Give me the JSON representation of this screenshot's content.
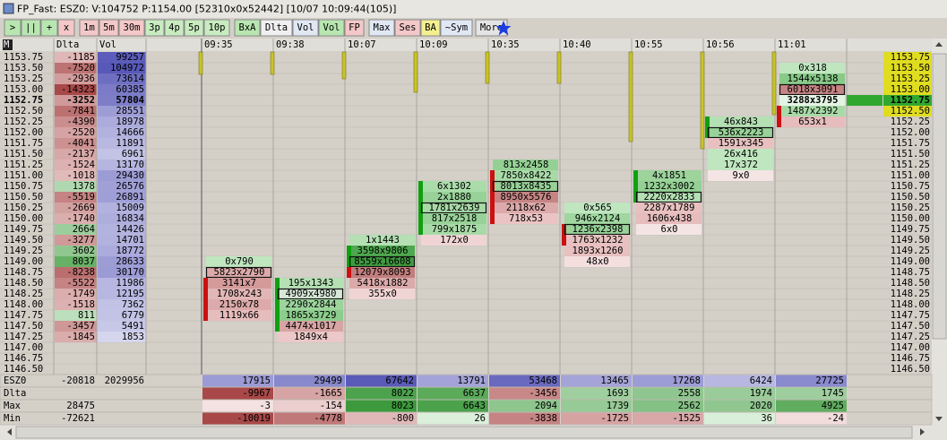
{
  "title": "FP_Fast: ESZ0: V:104752 P:1154.00 [52310x0x52442] [10/07 10:09:44(105)]",
  "toolbar": [
    {
      "label": ">",
      "color": "#b8e6b0"
    },
    {
      "label": "||",
      "color": "#b8e6b0"
    },
    {
      "label": "+",
      "color": "#b8e6b0"
    },
    {
      "label": "x",
      "color": "#f4c8c8"
    },
    {
      "label": "1m",
      "color": "#f4c8c8"
    },
    {
      "label": "5m",
      "color": "#f4c8c8"
    },
    {
      "label": "30m",
      "color": "#f4c8c8"
    },
    {
      "label": "3p",
      "color": "#c8ecc0"
    },
    {
      "label": "4p",
      "color": "#c8ecc0"
    },
    {
      "label": "5p",
      "color": "#c8ecc0"
    },
    {
      "label": "10p",
      "color": "#c8ecc0"
    },
    {
      "label": "BxA",
      "color": "#b8e6b0"
    },
    {
      "label": "Dlta",
      "color": "#f0f0f0"
    },
    {
      "label": "Vol",
      "color": "#e0e8f4"
    },
    {
      "label": "Vol",
      "color": "#b8e6b0"
    },
    {
      "label": "FP",
      "color": "#f4c8c8"
    },
    {
      "label": "Max",
      "color": "#e0e8f4"
    },
    {
      "label": "Ses",
      "color": "#f4c8c8"
    },
    {
      "label": "BA",
      "color": "#f4f090"
    },
    {
      "label": "~Sym",
      "color": "#e0e8f4"
    },
    {
      "label": "More",
      "color": "#e4e4e4"
    }
  ],
  "ladder": {
    "header": [
      "M",
      "Dlta",
      "Vol"
    ],
    "prices": [
      "1153.75",
      "1153.50",
      "1153.25",
      "1153.00",
      "1152.75",
      "1152.50",
      "1152.25",
      "1152.00",
      "1151.75",
      "1151.50",
      "1151.25",
      "1151.00",
      "1150.75",
      "1150.50",
      "1150.25",
      "1150.00",
      "1149.75",
      "1149.50",
      "1149.25",
      "1149.00",
      "1148.75",
      "1148.50",
      "1148.25",
      "1148.00",
      "1147.75",
      "1147.50",
      "1147.25",
      "1147.00",
      "1146.75",
      "1146.50"
    ],
    "dlta": [
      -1185,
      -7520,
      -2936,
      -14323,
      -3252,
      -7841,
      -4390,
      -2520,
      -4041,
      -2137,
      -1524,
      -1018,
      1378,
      -5519,
      -2669,
      -1740,
      2664,
      -3277,
      3602,
      8037,
      -8238,
      -5522,
      -1749,
      -1518,
      811,
      -3457,
      -1845,
      null,
      null,
      null
    ],
    "vol": [
      99257,
      104972,
      73614,
      60385,
      57804,
      28551,
      18978,
      14666,
      11891,
      6961,
      13170,
      29430,
      26576,
      26891,
      15009,
      16834,
      14426,
      14701,
      18772,
      28633,
      30170,
      11986,
      12195,
      7362,
      6779,
      5491,
      1853,
      null,
      null,
      null
    ]
  },
  "current_price": "1152.75",
  "columns": [
    {
      "time": "09:35",
      "activity": 25,
      "cells": [
        {
          "price": "1149.00",
          "text": "0x790",
          "color": "#bfe6bf"
        },
        {
          "price": "1148.75",
          "text": "5823x2790",
          "color": "#dcaaaa",
          "box": true
        },
        {
          "price": "1148.50",
          "text": "3141x7",
          "color": "#d49a9a",
          "bar": "#cc1010"
        },
        {
          "price": "1148.25",
          "text": "1708x243",
          "color": "#e2b6b6",
          "bar": "#cc1010"
        },
        {
          "price": "1148.00",
          "text": "2150x78",
          "color": "#dcaaaa",
          "bar": "#cc1010"
        },
        {
          "price": "1147.75",
          "text": "1119x66",
          "color": "#e6bcbc",
          "bar": "#cc1010"
        }
      ]
    },
    {
      "time": "09:38",
      "activity": 25,
      "cells": [
        {
          "price": "1148.50",
          "text": "195x1343",
          "color": "#b4e0b4",
          "bar": "#10a010"
        },
        {
          "price": "1148.25",
          "text": "4909x4980",
          "color": "#d8e8d8",
          "box": true,
          "bar": "#10a010"
        },
        {
          "price": "1148.00",
          "text": "2290x2844",
          "color": "#9cd49c",
          "bar": "#10a010"
        },
        {
          "price": "1147.75",
          "text": "1865x3729",
          "color": "#8ccc8c",
          "bar": "#10a010"
        },
        {
          "price": "1147.50",
          "text": "4474x1017",
          "color": "#d8a4a4",
          "bar": "#10a010"
        },
        {
          "price": "1147.25",
          "text": "1849x4",
          "color": "#ecc8c8"
        }
      ]
    },
    {
      "time": "10:07",
      "activity": 30,
      "cells": [
        {
          "price": "1149.50",
          "text": "1x1443",
          "color": "#b4e0b4"
        },
        {
          "price": "1149.25",
          "text": "3598x9806",
          "color": "#4fa84f",
          "bar": "#10a010"
        },
        {
          "price": "1149.00",
          "text": "8559x16608",
          "color": "#3f9a3f",
          "box": true,
          "bar": "#10a010"
        },
        {
          "price": "1148.75",
          "text": "12079x8093",
          "color": "#c27e7e",
          "bar": "#cc1010"
        },
        {
          "price": "1148.50",
          "text": "5418x1882",
          "color": "#dcaaaa"
        },
        {
          "price": "1148.25",
          "text": "355x0",
          "color": "#f0d4d4"
        }
      ]
    },
    {
      "time": "10:09",
      "activity": 45,
      "cells": [
        {
          "price": "1150.75",
          "text": "6x1302",
          "color": "#aadcaa",
          "bar": "#10a010"
        },
        {
          "price": "1150.50",
          "text": "2x1880",
          "color": "#98d298",
          "bar": "#10a010"
        },
        {
          "price": "1150.25",
          "text": "1781x2639",
          "color": "#a8daa8",
          "box": true,
          "bar": "#10a010"
        },
        {
          "price": "1150.00",
          "text": "817x2518",
          "color": "#98d298",
          "bar": "#10a010"
        },
        {
          "price": "1149.75",
          "text": "799x1875",
          "color": "#a8daa8",
          "bar": "#10a010"
        },
        {
          "price": "1149.50",
          "text": "172x0",
          "color": "#f0d4d4"
        }
      ]
    },
    {
      "time": "10:35",
      "activity": 35,
      "cells": [
        {
          "price": "1151.25",
          "text": "813x2458",
          "color": "#94d094"
        },
        {
          "price": "1151.00",
          "text": "7850x8422",
          "color": "#a8daa8",
          "bar": "#cc1010"
        },
        {
          "price": "1150.75",
          "text": "8013x8435",
          "color": "#98d298",
          "box": true,
          "bar": "#cc1010"
        },
        {
          "price": "1150.50",
          "text": "8950x5576",
          "color": "#c68484",
          "bar": "#cc1010"
        },
        {
          "price": "1150.25",
          "text": "2118x62",
          "color": "#dcaaaa",
          "bar": "#cc1010"
        },
        {
          "price": "1150.00",
          "text": "718x53",
          "color": "#eac4c4",
          "bar": "#cc1010"
        }
      ]
    },
    {
      "time": "10:40",
      "activity": 35,
      "cells": [
        {
          "price": "1150.25",
          "text": "0x565",
          "color": "#bfe6bf"
        },
        {
          "price": "1150.00",
          "text": "946x2124",
          "color": "#a0d6a0"
        },
        {
          "price": "1149.75",
          "text": "1236x2398",
          "color": "#98d298",
          "box": true,
          "bar": "#cc1010"
        },
        {
          "price": "1149.50",
          "text": "1763x1232",
          "color": "#e8c0c0",
          "bar": "#cc1010"
        },
        {
          "price": "1149.25",
          "text": "1893x1260",
          "color": "#e8c0c0"
        },
        {
          "price": "1149.00",
          "text": "48x0",
          "color": "#f4dede"
        }
      ]
    },
    {
      "time": "10:55",
      "activity": 100,
      "cells": [
        {
          "price": "1151.00",
          "text": "4x1851",
          "color": "#9cd49c",
          "bar": "#10a010"
        },
        {
          "price": "1150.75",
          "text": "1232x3002",
          "color": "#94d094",
          "bar": "#10a010"
        },
        {
          "price": "1150.50",
          "text": "2220x2833",
          "color": "#b4e0b4",
          "box": true,
          "bar": "#10a010"
        },
        {
          "price": "1150.25",
          "text": "2287x1789",
          "color": "#e8c0c0"
        },
        {
          "price": "1150.00",
          "text": "1606x438",
          "color": "#e6bcbc"
        },
        {
          "price": "1149.75",
          "text": "6x0",
          "color": "#f4e4e4"
        }
      ]
    },
    {
      "time": "10:56",
      "activity": 108,
      "cells": [
        {
          "price": "1152.25",
          "text": "46x843",
          "color": "#b4e0b4",
          "bar": "#10a010"
        },
        {
          "price": "1152.00",
          "text": "536x2223",
          "color": "#98d298",
          "box": true,
          "bar": "#10a010"
        },
        {
          "price": "1151.75",
          "text": "1591x345",
          "color": "#e8c0c0"
        },
        {
          "price": "1151.50",
          "text": "26x416",
          "color": "#bfe6bf"
        },
        {
          "price": "1151.25",
          "text": "17x372",
          "color": "#bfe6bf"
        },
        {
          "price": "1151.00",
          "text": "9x0",
          "color": "#f4e4e4"
        }
      ]
    },
    {
      "time": "11:01",
      "activity": 70,
      "cells": [
        {
          "price": "1153.50",
          "text": "0x318",
          "color": "#bfe6bf"
        },
        {
          "price": "1153.25",
          "text": "1544x5138",
          "color": "#88ca88"
        },
        {
          "price": "1153.00",
          "text": "6018x3091",
          "color": "#c68484",
          "box": true
        },
        {
          "price": "1152.75",
          "text": "3288x3795",
          "color": "#e4f4e4"
        },
        {
          "price": "1152.50",
          "text": "1487x2392",
          "color": "#a8daa8",
          "bar": "#cc1010"
        },
        {
          "price": "1152.25",
          "text": "653x1",
          "color": "#e6bcbc",
          "bar": "#cc1010"
        }
      ]
    }
  ],
  "right_highlights": [
    {
      "price": "1153.75",
      "color": "#e0dc20"
    },
    {
      "price": "1153.50",
      "color": "#e0dc20"
    },
    {
      "price": "1153.25",
      "color": "#e0dc20"
    },
    {
      "price": "1153.00",
      "color": "#e0dc20"
    },
    {
      "price": "1152.75",
      "color": "#30a830"
    },
    {
      "price": "1152.50",
      "color": "#e0dc20"
    }
  ],
  "summary": [
    {
      "label": "ESZ0",
      "dlta": -20818,
      "vol": 2029956,
      "values": [
        17915,
        29499,
        67642,
        13791,
        53468,
        13465,
        17268,
        6424,
        27725
      ]
    },
    {
      "label": "Dlta",
      "values": [
        -9967,
        -1665,
        8022,
        6637,
        -3456,
        1693,
        2558,
        1974,
        1745
      ]
    },
    {
      "label": "Max",
      "dlta": 28475,
      "values": [
        -3,
        -154,
        8023,
        6643,
        2094,
        1739,
        2562,
        2020,
        4925
      ]
    },
    {
      "label": "Min",
      "dlta": -72621,
      "values": [
        -10019,
        -4778,
        -800,
        26,
        -3838,
        -1725,
        -1525,
        36,
        -24
      ]
    }
  ]
}
